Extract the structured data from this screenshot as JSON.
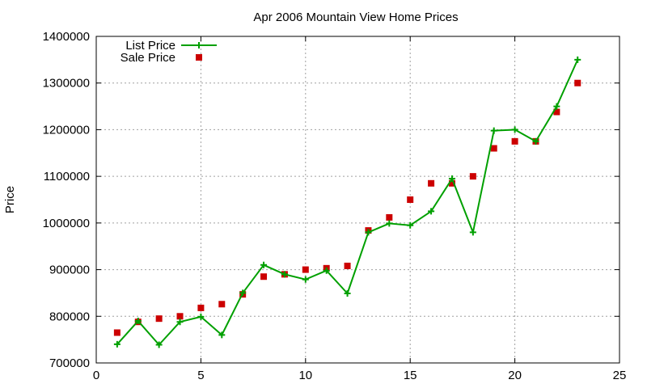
{
  "chart_data": {
    "type": "line",
    "title": "Apr 2006 Mountain View Home Prices",
    "xlabel": "",
    "ylabel": "Price",
    "xlim": [
      0,
      25
    ],
    "ylim": [
      700000,
      1400000
    ],
    "xticks": [
      0,
      5,
      10,
      15,
      20,
      25
    ],
    "yticks": [
      700000,
      800000,
      900000,
      1000000,
      1100000,
      1200000,
      1300000,
      1400000
    ],
    "xtick_labels": [
      "0",
      "5",
      "10",
      "15",
      "20",
      "25"
    ],
    "ytick_labels": [
      "700000",
      "800000",
      "900000",
      "1000000",
      "1100000",
      "1200000",
      "1300000",
      "1400000"
    ],
    "grid": true,
    "legend_position": "top-left",
    "series": [
      {
        "name": "List Price",
        "style": "line-with-plus-markers",
        "color": "#00a000",
        "x": [
          1,
          2,
          3,
          4,
          5,
          6,
          7,
          8,
          9,
          10,
          11,
          12,
          13,
          14,
          15,
          16,
          17,
          18,
          19,
          20,
          21,
          22,
          23
        ],
        "y": [
          740000,
          790000,
          739000,
          788000,
          799000,
          760000,
          850000,
          910000,
          890000,
          879000,
          898000,
          849000,
          980000,
          999000,
          995000,
          1025000,
          1095000,
          980000,
          1198000,
          1200000,
          1175000,
          1250000,
          1350000
        ]
      },
      {
        "name": "Sale Price",
        "style": "square-markers",
        "color": "#cc0000",
        "x": [
          1,
          2,
          3,
          4,
          5,
          6,
          7,
          8,
          9,
          10,
          11,
          12,
          13,
          14,
          15,
          16,
          17,
          18,
          19,
          20,
          21,
          22,
          23
        ],
        "y": [
          765000,
          788000,
          795000,
          800000,
          818000,
          826000,
          847000,
          885000,
          890000,
          900000,
          903000,
          908000,
          984000,
          1012000,
          1050000,
          1085000,
          1085000,
          1100000,
          1160000,
          1175000,
          1175000,
          1238000,
          1300000
        ]
      }
    ]
  }
}
